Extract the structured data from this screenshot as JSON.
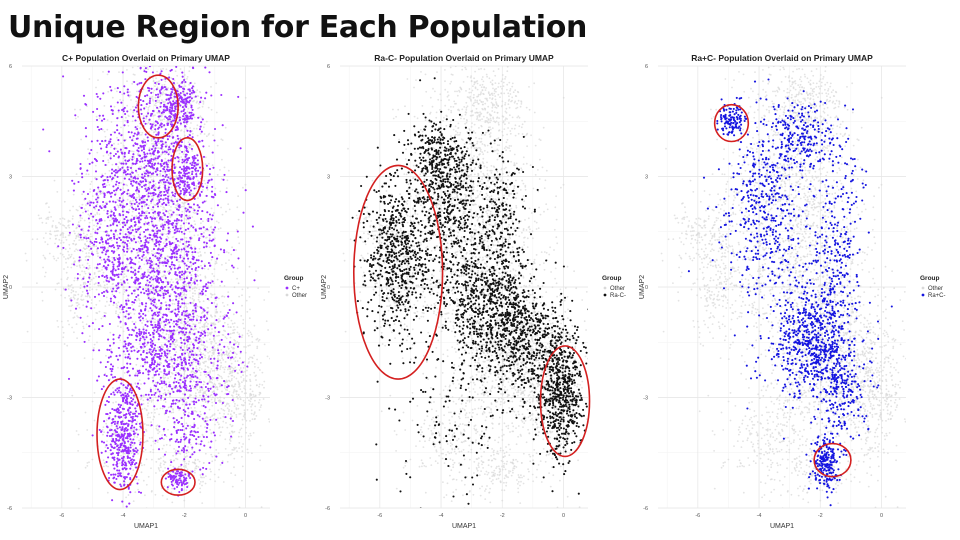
{
  "slide": {
    "title": "Unique Region for Each Population"
  },
  "colors": {
    "other": "#d9d9d9",
    "purple": "#9b30ff",
    "black": "#111111",
    "blue": "#1515e0",
    "circle": "#d42020"
  },
  "chart_data": [
    {
      "type": "scatter",
      "title": "C+ Population Overlaid on Primary UMAP",
      "xlabel": "UMAP1",
      "ylabel": "UMAP2",
      "xlim": [
        -7.3,
        0.8
      ],
      "ylim": [
        -6,
        6
      ],
      "xticks": [
        -6,
        -4,
        -2,
        0
      ],
      "yticks": [
        -6,
        -3,
        0,
        3,
        6
      ],
      "grid": true,
      "legend": {
        "title": "Group",
        "position": "right",
        "items": [
          {
            "label": "C+",
            "color": "#9b30ff"
          },
          {
            "label": "Other",
            "color": "#d9d9d9"
          }
        ]
      },
      "highlight_color": "#9b30ff",
      "highlight_clusters": [
        {
          "x": -3.2,
          "y": 3.3,
          "sx": 1.0,
          "sy": 1.4,
          "n": 900
        },
        {
          "x": -2.6,
          "y": 0.6,
          "sx": 0.95,
          "sy": 1.6,
          "n": 900
        },
        {
          "x": -2.5,
          "y": -1.8,
          "sx": 1.0,
          "sy": 0.9,
          "n": 500
        },
        {
          "x": -2.2,
          "y": 5.0,
          "sx": 0.3,
          "sy": 0.35,
          "n": 180
        },
        {
          "x": -1.9,
          "y": 3.2,
          "sx": 0.15,
          "sy": 0.4,
          "n": 90
        },
        {
          "x": -4.0,
          "y": -4.0,
          "sx": 0.3,
          "sy": 0.8,
          "n": 420
        },
        {
          "x": -2.2,
          "y": -5.2,
          "sx": 0.2,
          "sy": 0.15,
          "n": 80
        },
        {
          "x": -4.5,
          "y": 0.8,
          "sx": 0.5,
          "sy": 1.0,
          "n": 220
        },
        {
          "x": -1.8,
          "y": -3.8,
          "sx": 0.45,
          "sy": 0.7,
          "n": 150
        }
      ],
      "annotations": [
        {
          "x": -2.85,
          "y": 4.9,
          "rx": 0.65,
          "ry": 0.85
        },
        {
          "x": -1.9,
          "y": 3.2,
          "rx": 0.5,
          "ry": 0.85
        },
        {
          "x": -4.1,
          "y": -4.0,
          "rx": 0.75,
          "ry": 1.5
        },
        {
          "x": -2.2,
          "y": -5.3,
          "rx": 0.55,
          "ry": 0.35
        }
      ]
    },
    {
      "type": "scatter",
      "title": "Ra-C- Population Overlaid on Primary UMAP",
      "xlabel": "UMAP1",
      "ylabel": "UMAP2",
      "xlim": [
        -7.3,
        0.8
      ],
      "ylim": [
        -6,
        6
      ],
      "xticks": [
        -6,
        -4,
        -2,
        0
      ],
      "yticks": [
        -6,
        -3,
        0,
        3,
        6
      ],
      "grid": true,
      "legend": {
        "title": "Group",
        "position": "right",
        "items": [
          {
            "label": "Other",
            "color": "#d9d9d9"
          },
          {
            "label": "Ra-C-",
            "color": "#111111"
          }
        ]
      },
      "highlight_color": "#111111",
      "highlight_clusters": [
        {
          "x": -5.4,
          "y": 0.8,
          "sx": 0.55,
          "sy": 1.05,
          "n": 650
        },
        {
          "x": -3.8,
          "y": 2.4,
          "sx": 0.55,
          "sy": 0.9,
          "n": 500
        },
        {
          "x": -2.6,
          "y": -0.4,
          "sx": 0.8,
          "sy": 0.85,
          "n": 650
        },
        {
          "x": -1.3,
          "y": -1.4,
          "sx": 0.7,
          "sy": 0.8,
          "n": 550
        },
        {
          "x": -0.1,
          "y": -2.9,
          "sx": 0.4,
          "sy": 0.9,
          "n": 600
        },
        {
          "x": -2.1,
          "y": 1.8,
          "sx": 0.45,
          "sy": 1.0,
          "n": 250
        },
        {
          "x": -4.2,
          "y": 3.6,
          "sx": 0.5,
          "sy": 0.5,
          "n": 200
        },
        {
          "x": -3.4,
          "y": -3.5,
          "sx": 1.1,
          "sy": 1.1,
          "n": 120
        }
      ],
      "annotations": [
        {
          "x": -5.4,
          "y": 0.4,
          "rx": 1.45,
          "ry": 2.9
        },
        {
          "x": 0.05,
          "y": -3.1,
          "rx": 0.8,
          "ry": 1.5
        }
      ]
    },
    {
      "type": "scatter",
      "title": "Ra+C- Population Overlaid on Primary UMAP",
      "xlabel": "UMAP1",
      "ylabel": "UMAP2",
      "xlim": [
        -7.3,
        0.8
      ],
      "ylim": [
        -6,
        6
      ],
      "xticks": [
        -6,
        -4,
        -2,
        0
      ],
      "yticks": [
        -6,
        -3,
        0,
        3,
        6
      ],
      "grid": true,
      "legend": {
        "title": "Group",
        "position": "right",
        "items": [
          {
            "label": "Other",
            "color": "#d9d9d9"
          },
          {
            "label": "Ra+C-",
            "color": "#1515e0"
          }
        ]
      },
      "highlight_color": "#1515e0",
      "highlight_clusters": [
        {
          "x": -4.9,
          "y": 4.5,
          "sx": 0.22,
          "sy": 0.22,
          "n": 120
        },
        {
          "x": -3.8,
          "y": 2.2,
          "sx": 0.7,
          "sy": 1.3,
          "n": 450
        },
        {
          "x": -2.3,
          "y": -1.4,
          "sx": 0.7,
          "sy": 0.8,
          "n": 650
        },
        {
          "x": -1.4,
          "y": 1.2,
          "sx": 0.4,
          "sy": 1.5,
          "n": 250
        },
        {
          "x": -1.8,
          "y": -4.8,
          "sx": 0.22,
          "sy": 0.35,
          "n": 200
        },
        {
          "x": -2.6,
          "y": 4.1,
          "sx": 0.5,
          "sy": 0.5,
          "n": 200
        },
        {
          "x": -1.3,
          "y": -2.8,
          "sx": 0.4,
          "sy": 0.7,
          "n": 220
        }
      ],
      "annotations": [
        {
          "x": -4.9,
          "y": 4.45,
          "rx": 0.55,
          "ry": 0.5
        },
        {
          "x": -1.6,
          "y": -4.7,
          "rx": 0.6,
          "ry": 0.45
        }
      ]
    }
  ]
}
